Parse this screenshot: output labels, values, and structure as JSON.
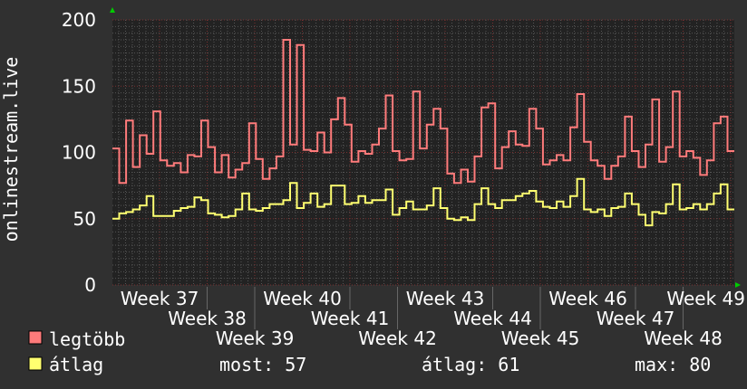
{
  "chart_data": {
    "type": "line",
    "title": "",
    "ylabel": "onlinestream.live",
    "xlabel": "",
    "ylim": [
      0,
      200
    ],
    "yticks": [
      "0",
      "50",
      "100",
      "150",
      "200"
    ],
    "xtick_labels": [
      "Week 37",
      "Week 38",
      "Week 39",
      "Week 40",
      "Week 41",
      "Week 42",
      "Week 43",
      "Week 44",
      "Week 45",
      "Week 46",
      "Week 47",
      "Week 48",
      "Week 49"
    ],
    "grid": true,
    "step": true,
    "legend_placement": "bottom-left",
    "series": [
      {
        "name": "legtöbb",
        "color": "#ff7b7b",
        "values": [
          103,
          77,
          124,
          89,
          113,
          99,
          131,
          94,
          90,
          92,
          85,
          98,
          97,
          124,
          104,
          85,
          98,
          81,
          87,
          92,
          122,
          95,
          80,
          88,
          97,
          185,
          106,
          181,
          102,
          101,
          115,
          100,
          125,
          141,
          121,
          93,
          101,
          99,
          106,
          118,
          143,
          101,
          94,
          95,
          146,
          103,
          121,
          133,
          118,
          84,
          77,
          87,
          78,
          97,
          134,
          137,
          88,
          104,
          116,
          106,
          105,
          133,
          118,
          91,
          94,
          98,
          94,
          119,
          144,
          108,
          94,
          90,
          80,
          90,
          97,
          127,
          101,
          89,
          106,
          140,
          93,
          104,
          146,
          97,
          101,
          96,
          83,
          94,
          122,
          127,
          101
        ]
      },
      {
        "name": "átlag",
        "color": "#ffff70",
        "values": [
          50,
          54,
          55,
          57,
          60,
          67,
          52,
          52,
          52,
          56,
          58,
          59,
          66,
          64,
          54,
          53,
          51,
          52,
          57,
          69,
          57,
          56,
          58,
          61,
          61,
          64,
          77,
          58,
          62,
          69,
          59,
          61,
          75,
          75,
          61,
          62,
          67,
          62,
          64,
          64,
          72,
          53,
          58,
          63,
          57,
          57,
          60,
          73,
          58,
          50,
          49,
          51,
          49,
          61,
          73,
          61,
          58,
          64,
          64,
          67,
          69,
          71,
          63,
          59,
          58,
          63,
          59,
          67,
          80,
          57,
          55,
          57,
          52,
          58,
          59,
          69,
          61,
          53,
          45,
          55,
          54,
          61,
          76,
          57,
          58,
          61,
          57,
          61,
          69,
          76,
          57
        ]
      }
    ],
    "stats": {
      "most_label": "most: 57",
      "atlag_label": "átlag: 61",
      "max_label": "max: 80"
    }
  },
  "colors": {
    "background": "#303030",
    "plot_background": "#222222",
    "minor_grid": "#555555",
    "major_grid": "#7a3030",
    "axis_arrow": "#00cc00"
  }
}
